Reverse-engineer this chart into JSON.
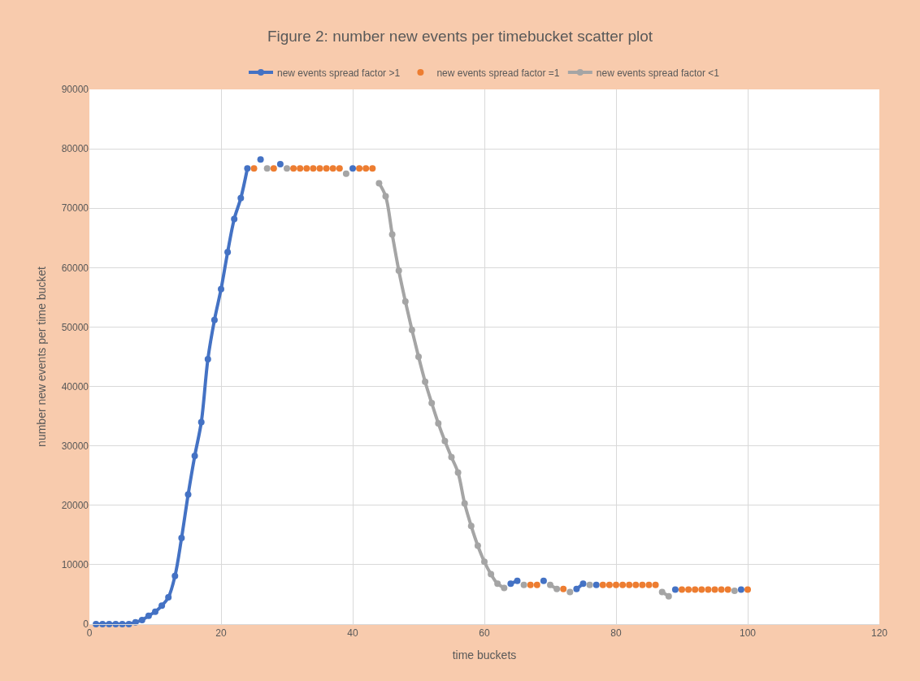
{
  "chart_data": {
    "type": "line",
    "title": "Figure 2: number new events per timebucket scatter plot",
    "xlabel": "time buckets",
    "ylabel": "number new events per time bucket",
    "x": [
      1,
      2,
      3,
      4,
      5,
      6,
      7,
      8,
      9,
      10,
      11,
      12,
      13,
      14,
      15,
      16,
      17,
      18,
      19,
      20,
      21,
      22,
      23,
      24,
      25,
      26,
      27,
      28,
      29,
      30,
      31,
      32,
      33,
      34,
      35,
      36,
      37,
      38,
      39,
      40,
      41,
      42,
      43,
      44,
      45,
      46,
      47,
      48,
      49,
      50,
      51,
      52,
      53,
      54,
      55,
      56,
      57,
      58,
      59,
      60,
      61,
      62,
      63,
      64,
      65,
      66,
      67,
      68,
      69,
      70,
      71,
      72,
      73,
      74,
      75,
      76,
      77,
      78,
      79,
      80,
      81,
      82,
      83,
      84,
      85,
      86,
      87,
      88,
      89,
      90,
      91,
      92,
      93,
      94,
      95,
      96,
      97,
      98,
      99,
      100
    ],
    "series": [
      {
        "name": "new events spread factor >1",
        "color": "#4472c4",
        "values": [
          0,
          0,
          0,
          0,
          0,
          0,
          300,
          700,
          1400,
          2100,
          3100,
          4500,
          8100,
          14500,
          21800,
          28300,
          34000,
          44600,
          51200,
          56400,
          62600,
          68200,
          71700,
          76700,
          null,
          78200,
          null,
          null,
          77400,
          null,
          null,
          null,
          null,
          null,
          null,
          null,
          null,
          null,
          null,
          76700,
          null,
          null,
          null,
          null,
          null,
          null,
          null,
          null,
          null,
          null,
          null,
          null,
          null,
          null,
          null,
          null,
          null,
          null,
          null,
          null,
          null,
          null,
          null,
          6800,
          7300,
          null,
          null,
          null,
          7300,
          null,
          null,
          null,
          null,
          5900,
          6800,
          null,
          6600,
          null,
          null,
          null,
          null,
          null,
          null,
          null,
          null,
          null,
          null,
          null,
          5800,
          null,
          null,
          null,
          null,
          null,
          null,
          null,
          null,
          null,
          5800,
          null
        ]
      },
      {
        "name": "new events spread factor =1",
        "type": "scatter",
        "color": "#ed7d31",
        "values": [
          null,
          null,
          null,
          null,
          null,
          null,
          null,
          null,
          null,
          null,
          null,
          null,
          null,
          null,
          null,
          null,
          null,
          null,
          null,
          null,
          null,
          null,
          null,
          null,
          76700,
          null,
          null,
          76700,
          null,
          null,
          76700,
          76700,
          76700,
          76700,
          76700,
          76700,
          76700,
          76700,
          null,
          null,
          76700,
          76700,
          76700,
          null,
          null,
          null,
          null,
          null,
          null,
          null,
          null,
          null,
          null,
          null,
          null,
          null,
          null,
          null,
          null,
          null,
          null,
          null,
          null,
          null,
          null,
          null,
          6600,
          6600,
          null,
          null,
          null,
          5900,
          null,
          null,
          null,
          null,
          null,
          6600,
          6600,
          6600,
          6600,
          6600,
          6600,
          6600,
          6600,
          6600,
          null,
          null,
          null,
          5800,
          5800,
          5800,
          5800,
          5800,
          5800,
          5800,
          5800,
          null,
          null,
          5800
        ]
      },
      {
        "name": "new events spread factor <1",
        "color": "#a5a5a5",
        "values": [
          null,
          null,
          null,
          null,
          null,
          null,
          null,
          null,
          null,
          null,
          null,
          null,
          null,
          null,
          null,
          null,
          null,
          null,
          null,
          null,
          null,
          null,
          null,
          null,
          null,
          null,
          76700,
          null,
          null,
          76700,
          null,
          null,
          null,
          null,
          null,
          null,
          null,
          null,
          75800,
          null,
          null,
          null,
          null,
          74200,
          72000,
          65600,
          59500,
          54300,
          49500,
          45000,
          40800,
          37200,
          33800,
          30800,
          28100,
          25500,
          20300,
          16500,
          13200,
          10500,
          8400,
          6800,
          6100,
          null,
          null,
          6600,
          null,
          null,
          null,
          6600,
          5900,
          null,
          5400,
          null,
          null,
          6600,
          null,
          null,
          null,
          null,
          null,
          null,
          null,
          null,
          null,
          null,
          5400,
          4700,
          null,
          null,
          null,
          null,
          null,
          null,
          null,
          null,
          null,
          5600,
          null,
          null
        ]
      }
    ],
    "xlim": [
      0,
      120
    ],
    "xticks": [
      0,
      20,
      40,
      60,
      80,
      100,
      120
    ],
    "ylim": [
      0,
      90000
    ],
    "yticks": [
      0,
      10000,
      20000,
      30000,
      40000,
      50000,
      60000,
      70000,
      80000,
      90000
    ],
    "grid": true,
    "legend": "top",
    "marker": "circle",
    "line_style": "solid"
  }
}
